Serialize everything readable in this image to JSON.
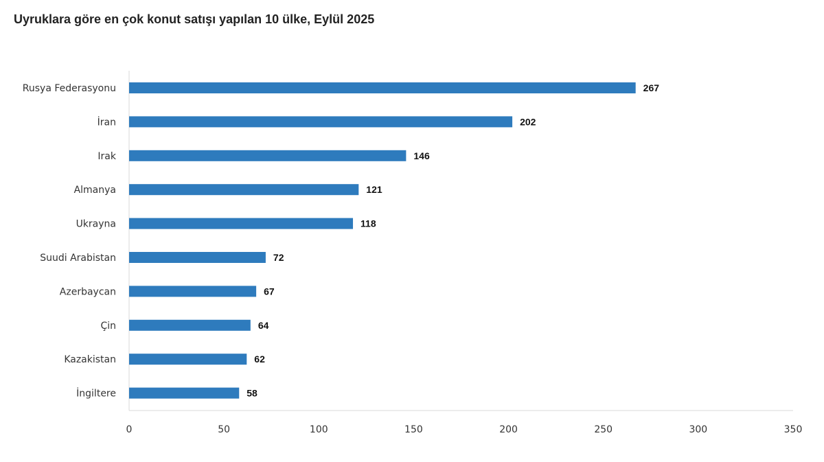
{
  "chart_data": {
    "type": "bar",
    "orientation": "horizontal",
    "title": "Uyruklara göre en çok konut satışı yapılan 10 ülke, Eylül 2025",
    "categories": [
      "Rusya Federasyonu",
      "İran",
      "Irak",
      "Almanya",
      "Ukrayna",
      "Suudi Arabistan",
      "Azerbaycan",
      "Çin",
      "Kazakistan",
      "İngiltere"
    ],
    "values": [
      267,
      202,
      146,
      121,
      118,
      72,
      67,
      64,
      62,
      58
    ],
    "xlim": [
      0,
      350
    ],
    "xticks": [
      0,
      50,
      100,
      150,
      200,
      250,
      300,
      350
    ],
    "xlabel": "",
    "ylabel": "",
    "grid": false,
    "legend": "none",
    "bar_color": "#2e7bbd",
    "data_labels": true
  }
}
